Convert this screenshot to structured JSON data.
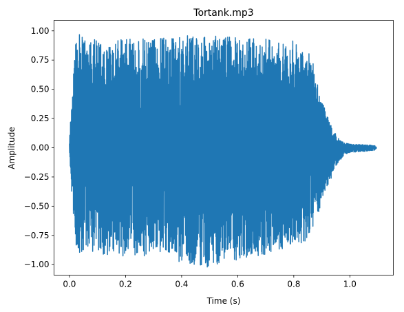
{
  "chart_data": {
    "type": "line",
    "title": "Tortank.mp3",
    "xlabel": "Time (s)",
    "ylabel": "Amplitude",
    "xlim": [
      -0.055,
      1.155
    ],
    "ylim": [
      -1.09,
      1.09
    ],
    "xticks": [
      {
        "value": 0.0,
        "label": "0.0"
      },
      {
        "value": 0.2,
        "label": "0.2"
      },
      {
        "value": 0.4,
        "label": "0.4"
      },
      {
        "value": 0.6,
        "label": "0.6"
      },
      {
        "value": 0.8,
        "label": "0.8"
      },
      {
        "value": 1.0,
        "label": "1.0"
      }
    ],
    "yticks": [
      {
        "value": 1.0,
        "label": "1.00"
      },
      {
        "value": 0.75,
        "label": "0.75"
      },
      {
        "value": 0.5,
        "label": "0.50"
      },
      {
        "value": 0.25,
        "label": "0.25"
      },
      {
        "value": 0.0,
        "label": "0.00"
      },
      {
        "value": -0.25,
        "label": "−0.25"
      },
      {
        "value": -0.5,
        "label": "−0.50"
      },
      {
        "value": -0.75,
        "label": "−0.75"
      },
      {
        "value": -1.0,
        "label": "−1.00"
      }
    ],
    "grid": false,
    "legend": "none",
    "series": [
      {
        "color": "#1f77b4",
        "envelope": [
          {
            "x": 0.0,
            "max": 0.05,
            "min": -0.05
          },
          {
            "x": 0.005,
            "max": 0.3,
            "min": -0.3
          },
          {
            "x": 0.01,
            "max": 0.55,
            "min": -0.5
          },
          {
            "x": 0.02,
            "max": 0.93,
            "min": -0.8
          },
          {
            "x": 0.03,
            "max": 0.98,
            "min": -0.9
          },
          {
            "x": 0.05,
            "max": 0.96,
            "min": -0.92
          },
          {
            "x": 0.08,
            "max": 0.93,
            "min": -0.9
          },
          {
            "x": 0.1,
            "max": 0.95,
            "min": -0.92
          },
          {
            "x": 0.15,
            "max": 0.92,
            "min": -0.93
          },
          {
            "x": 0.2,
            "max": 0.95,
            "min": -0.94
          },
          {
            "x": 0.25,
            "max": 0.93,
            "min": -0.93
          },
          {
            "x": 0.3,
            "max": 0.96,
            "min": -0.92
          },
          {
            "x": 0.35,
            "max": 0.95,
            "min": -0.95
          },
          {
            "x": 0.4,
            "max": 0.97,
            "min": -0.98
          },
          {
            "x": 0.45,
            "max": 0.95,
            "min": -1.0
          },
          {
            "x": 0.5,
            "max": 0.96,
            "min": -1.04
          },
          {
            "x": 0.55,
            "max": 0.97,
            "min": -0.98
          },
          {
            "x": 0.6,
            "max": 0.94,
            "min": -0.96
          },
          {
            "x": 0.65,
            "max": 0.95,
            "min": -0.93
          },
          {
            "x": 0.7,
            "max": 0.93,
            "min": -0.92
          },
          {
            "x": 0.75,
            "max": 0.9,
            "min": -0.88
          },
          {
            "x": 0.8,
            "max": 0.92,
            "min": -0.85
          },
          {
            "x": 0.83,
            "max": 0.86,
            "min": -0.82
          },
          {
            "x": 0.86,
            "max": 0.82,
            "min": -0.75
          },
          {
            "x": 0.88,
            "max": 0.6,
            "min": -0.62
          },
          {
            "x": 0.9,
            "max": 0.4,
            "min": -0.5
          },
          {
            "x": 0.92,
            "max": 0.28,
            "min": -0.35
          },
          {
            "x": 0.94,
            "max": 0.16,
            "min": -0.22
          },
          {
            "x": 0.96,
            "max": 0.08,
            "min": -0.12
          },
          {
            "x": 0.98,
            "max": 0.04,
            "min": -0.06
          },
          {
            "x": 1.0,
            "max": 0.035,
            "min": -0.04
          },
          {
            "x": 1.03,
            "max": 0.03,
            "min": -0.035
          },
          {
            "x": 1.06,
            "max": 0.025,
            "min": -0.03
          },
          {
            "x": 1.09,
            "max": 0.02,
            "min": -0.02
          },
          {
            "x": 1.095,
            "max": 0.0,
            "min": 0.0
          }
        ]
      }
    ]
  }
}
